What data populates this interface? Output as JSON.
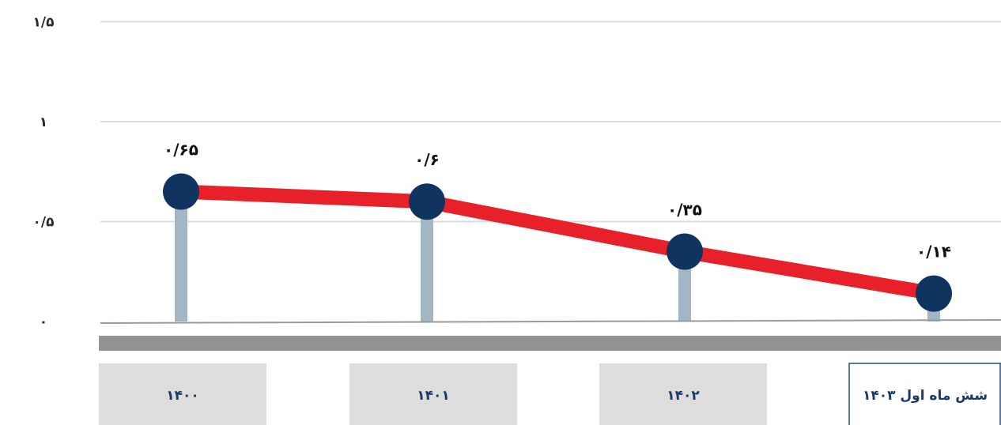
{
  "chart_data": {
    "type": "line",
    "title": "",
    "xlabel": "",
    "ylabel": "",
    "ylim": [
      0,
      1.5
    ],
    "yticks": [
      {
        "value": 0,
        "label": "۰"
      },
      {
        "value": 0.5,
        "label": "۰/۵"
      },
      {
        "value": 1,
        "label": "۱"
      },
      {
        "value": 1.5,
        "label": "۱/۵"
      }
    ],
    "categories": [
      "۱۴۰۰",
      "۱۴۰۱",
      "۱۴۰۲",
      "شش ماه اول ۱۴۰۳"
    ],
    "values": [
      0.65,
      0.6,
      0.35,
      0.14
    ],
    "data_labels": [
      "۰/۶۵",
      "۰/۶",
      "۰/۳۵",
      "۰/۱۴"
    ],
    "grid": true,
    "colors": {
      "line": "#e8202a",
      "marker": "#0f3460",
      "stem": "#a3b6c3",
      "grid": "#dcdcdc",
      "axis": "#9a9a9a",
      "band": "#939395",
      "category_box": "#dddddd",
      "category_box_highlight_border": "#2c4a7a"
    }
  }
}
